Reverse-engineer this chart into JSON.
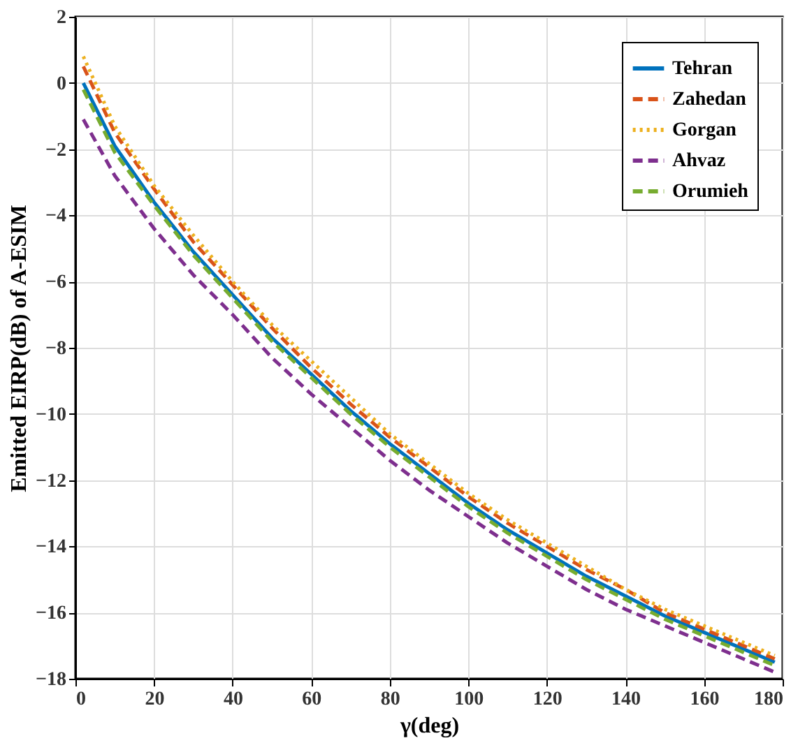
{
  "chart_data": {
    "type": "line",
    "xlabel": "γ(deg)",
    "ylabel": "Emitted EIRP(dB) of A-ESIM",
    "x": [
      2,
      10,
      20,
      30,
      40,
      50,
      60,
      70,
      80,
      90,
      100,
      110,
      120,
      130,
      140,
      150,
      160,
      170,
      178
    ],
    "series": [
      {
        "name": "Tehran",
        "color": "#0072bd",
        "line_style": "solid",
        "values": [
          0,
          -1.9,
          -3.6,
          -5.1,
          -6.4,
          -7.7,
          -8.8,
          -9.9,
          -10.9,
          -11.8,
          -12.7,
          -13.5,
          -14.2,
          -14.9,
          -15.5,
          -16.1,
          -16.6,
          -17.1,
          -17.5
        ]
      },
      {
        "name": "Zahedan",
        "color": "#d95319",
        "line_style": "dashed",
        "values": [
          0.5,
          -1.5,
          -3.2,
          -4.8,
          -6.1,
          -7.4,
          -8.6,
          -9.7,
          -10.7,
          -11.6,
          -12.5,
          -13.3,
          -14.0,
          -14.7,
          -15.3,
          -16.0,
          -16.5,
          -17.0,
          -17.4
        ]
      },
      {
        "name": "Gorgan",
        "color": "#edb120",
        "line_style": "dotted",
        "values": [
          0.8,
          -1.3,
          -3.1,
          -4.6,
          -6.0,
          -7.3,
          -8.4,
          -9.5,
          -10.6,
          -11.5,
          -12.4,
          -13.2,
          -13.9,
          -14.6,
          -15.3,
          -15.9,
          -16.4,
          -16.9,
          -17.3
        ]
      },
      {
        "name": "Ahvaz",
        "color": "#7e2f8e",
        "line_style": "dashed",
        "values": [
          -1.1,
          -2.8,
          -4.4,
          -5.8,
          -7.0,
          -8.3,
          -9.4,
          -10.4,
          -11.4,
          -12.3,
          -13.1,
          -13.9,
          -14.6,
          -15.3,
          -15.9,
          -16.4,
          -16.9,
          -17.4,
          -17.8
        ]
      },
      {
        "name": "Orumieh",
        "color": "#77ac30",
        "line_style": "dashed",
        "values": [
          -0.2,
          -2.1,
          -3.7,
          -5.2,
          -6.5,
          -7.8,
          -8.9,
          -10.0,
          -11.0,
          -11.9,
          -12.8,
          -13.6,
          -14.3,
          -15.0,
          -15.6,
          -16.2,
          -16.7,
          -17.2,
          -17.6
        ]
      }
    ],
    "xlim": [
      0,
      180
    ],
    "xticks": [
      0,
      20,
      40,
      60,
      80,
      100,
      120,
      140,
      160,
      180
    ],
    "ylim": [
      -18,
      2
    ],
    "yticks": [
      -18,
      -16,
      -14,
      -12,
      -10,
      -8,
      -6,
      -4,
      -2,
      0,
      2
    ],
    "grid": true,
    "legend": "top right"
  }
}
